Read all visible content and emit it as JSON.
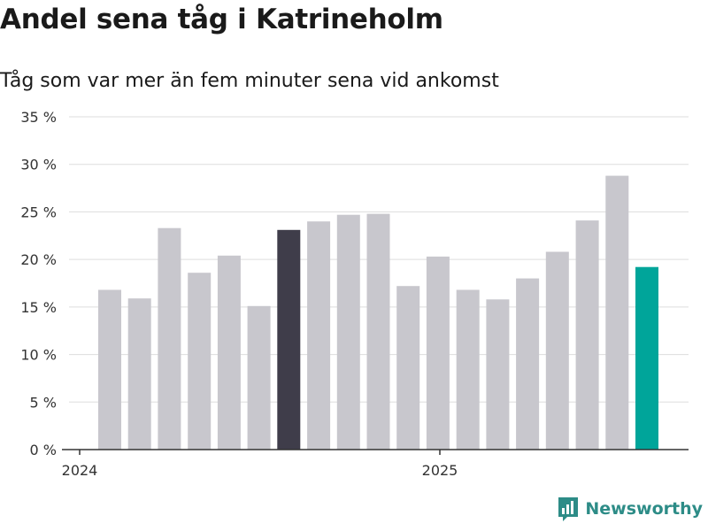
{
  "header": {
    "title": "Andel sena tåg i Katrineholm",
    "subtitle": "Tåg som var mer än fem minuter sena vid ankomst"
  },
  "brand": {
    "name": "Newsworthy"
  },
  "colors": {
    "bar_default": "#c8c7cd",
    "bar_highlight_dark": "#3f3d4a",
    "bar_highlight_teal": "#00a59a",
    "grid": "#dddddd",
    "axis": "#333333",
    "brand": "#2d8c87"
  },
  "chart_data": {
    "type": "bar",
    "x_tick_labels": [
      "2024",
      "2025"
    ],
    "y_tick_labels": [
      "0 %",
      "5 %",
      "10 %",
      "15 %",
      "20 %",
      "25 %",
      "30 %",
      "35 %"
    ],
    "ylim": [
      0,
      35
    ],
    "grid": true,
    "values": [
      16.8,
      15.9,
      23.3,
      18.6,
      20.4,
      15.1,
      23.1,
      24.0,
      24.7,
      24.8,
      17.2,
      20.3,
      16.8,
      15.8,
      18.0,
      20.8,
      24.1,
      28.8,
      19.2
    ],
    "highlights": {
      "dark": [
        6
      ],
      "teal": [
        18
      ]
    }
  }
}
